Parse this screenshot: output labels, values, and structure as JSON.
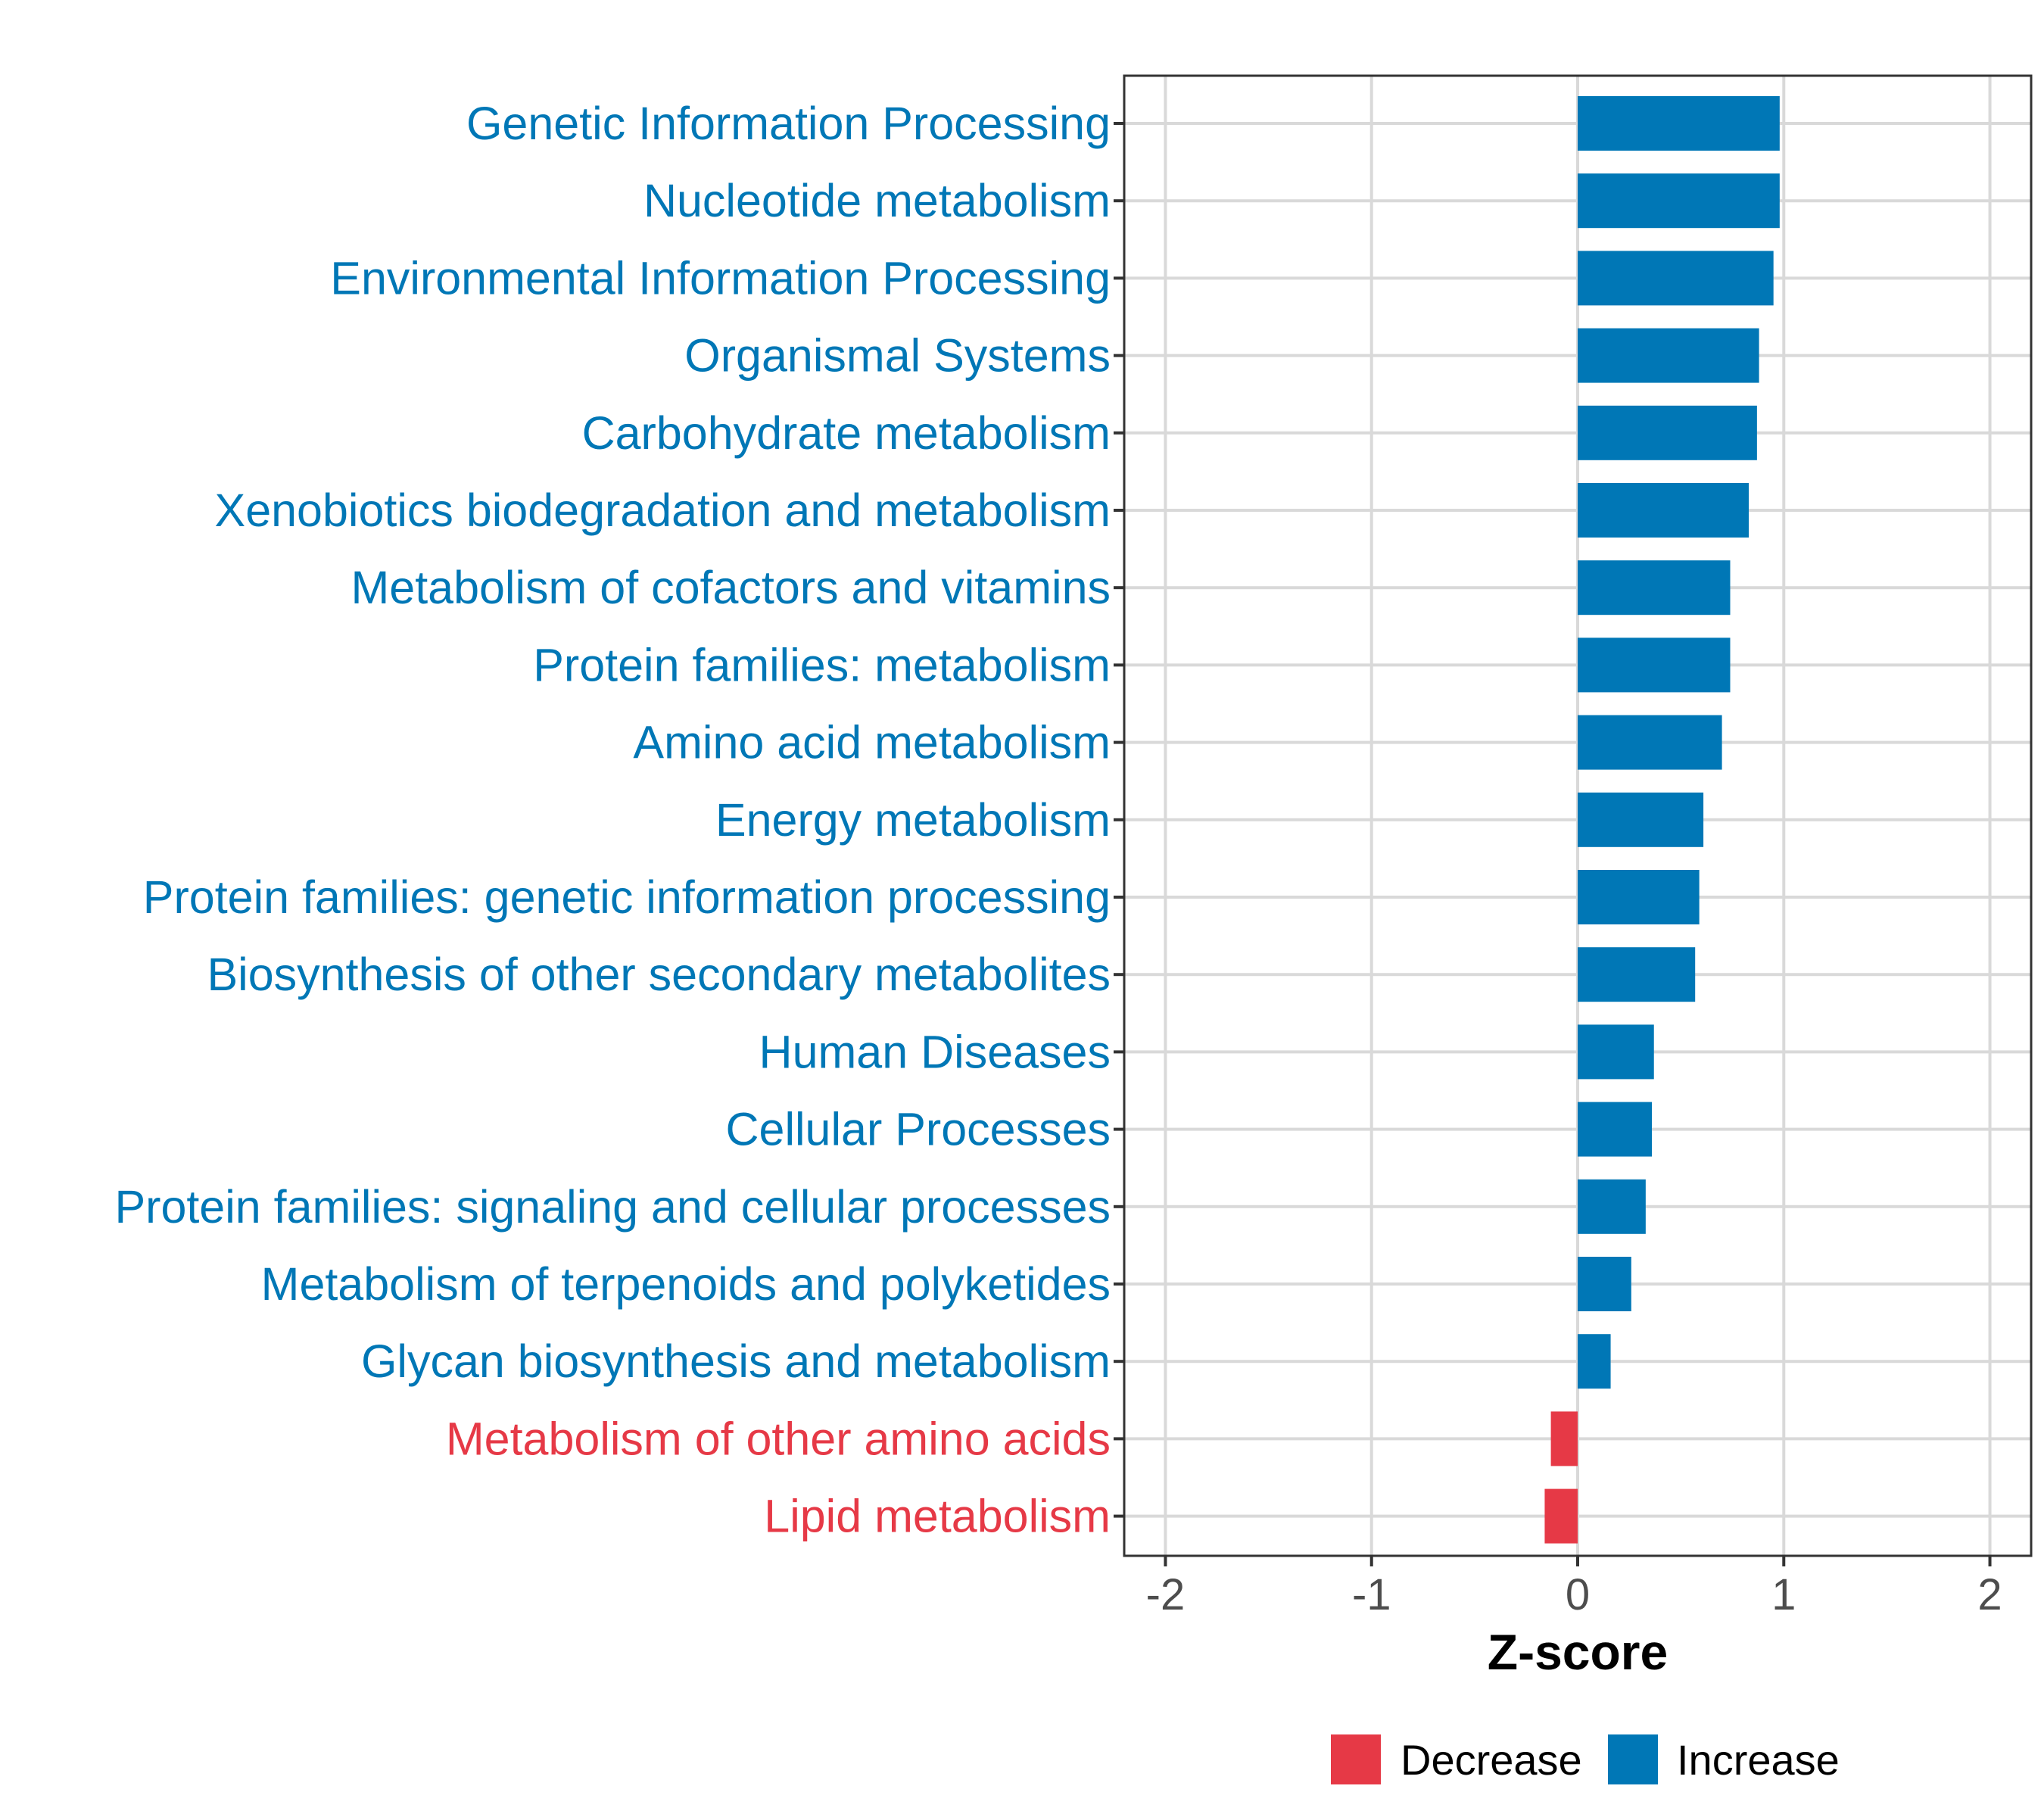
{
  "chart_data": {
    "type": "bar",
    "orientation": "horizontal",
    "title": "",
    "xlabel": "Z-score",
    "ylabel": "",
    "xlim": [
      -2.2,
      2.2
    ],
    "xticks": [
      -2,
      -1,
      0,
      1,
      2
    ],
    "xtick_labels": [
      "-2",
      "-1",
      "0",
      "1",
      "2"
    ],
    "grid": true,
    "categories": [
      "Genetic Information Processing",
      "Nucleotide metabolism",
      "Environmental Information Processing",
      "Organismal Systems",
      "Carbohydrate metabolism",
      "Xenobiotics biodegradation and metabolism",
      "Metabolism of cofactors and vitamins",
      "Protein families: metabolism",
      "Amino acid metabolism",
      "Energy metabolism",
      "Protein families: genetic information processing",
      "Biosynthesis of other secondary metabolites",
      "Human Diseases",
      "Cellular Processes",
      "Protein families: signaling and cellular processes",
      "Metabolism of terpenoids and polyketides",
      "Glycan biosynthesis and metabolism",
      "Metabolism of other amino acids",
      "Lipid metabolism"
    ],
    "values": [
      0.98,
      0.98,
      0.95,
      0.88,
      0.87,
      0.83,
      0.74,
      0.74,
      0.7,
      0.61,
      0.59,
      0.57,
      0.37,
      0.36,
      0.33,
      0.26,
      0.16,
      -0.13,
      -0.16
    ],
    "groups": [
      "Increase",
      "Increase",
      "Increase",
      "Increase",
      "Increase",
      "Increase",
      "Increase",
      "Increase",
      "Increase",
      "Increase",
      "Increase",
      "Increase",
      "Increase",
      "Increase",
      "Increase",
      "Increase",
      "Increase",
      "Decrease",
      "Decrease"
    ],
    "legend": {
      "position": "bottom",
      "entries": [
        {
          "label": "Decrease",
          "color": "#e63946"
        },
        {
          "label": "Increase",
          "color": "#0077b6"
        }
      ]
    },
    "colors": {
      "Decrease": "#e63946",
      "Increase": "#0077b6"
    }
  }
}
